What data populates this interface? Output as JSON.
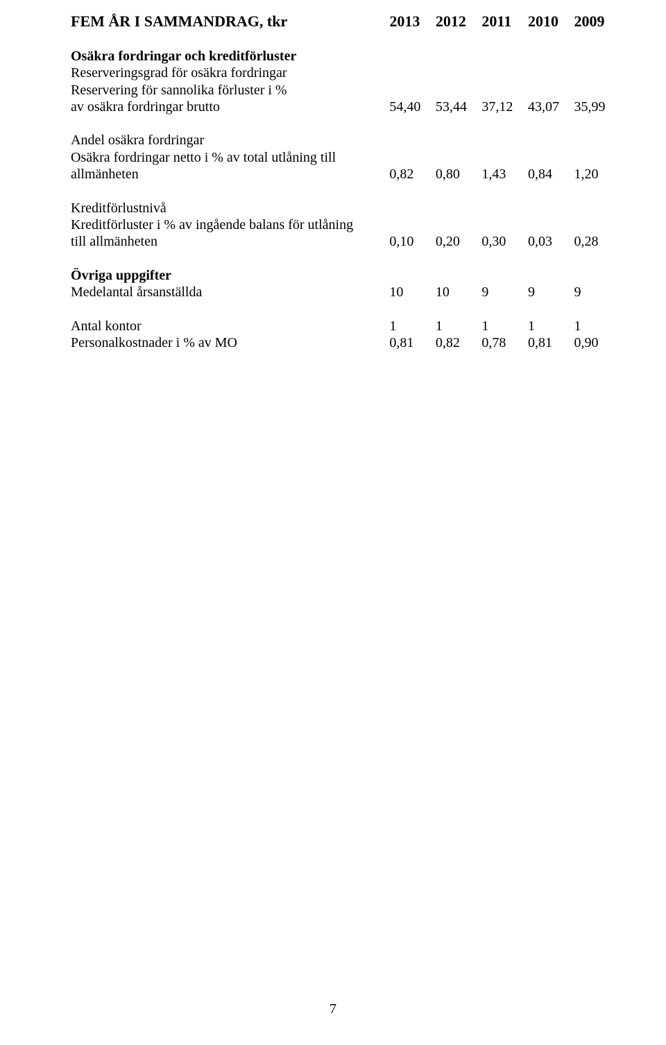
{
  "header": {
    "title": "FEM ÅR I SAMMANDRAG, tkr",
    "years": [
      "2013",
      "2012",
      "2011",
      "2010",
      "2009"
    ]
  },
  "sections": {
    "osakra": {
      "heading": "Osäkra fordringar och kreditförluster",
      "r1_l1": "Reserveringsgrad för osäkra fordringar",
      "r1_l2": " Reservering för sannolika förluster i %",
      "r1_l3": " av osäkra fordringar brutto",
      "r1_vals": [
        "54,40",
        "53,44",
        "37,12",
        "43,07",
        "35,99"
      ],
      "r2_l1": "Andel osäkra fordringar",
      "r2_l2": " Osäkra fordringar netto i % av total utlåning till",
      "r2_l3": " allmänheten",
      "r2_vals": [
        "0,82",
        "0,80",
        "1,43",
        "0,84",
        "1,20"
      ],
      "r3_l1": "Kreditförlustnivå",
      "r3_l2": " Kreditförluster i % av ingående balans för utlåning",
      "r3_l3": " till allmänheten",
      "r3_vals": [
        "0,10",
        "0,20",
        "0,30",
        "0,03",
        "0,28"
      ]
    },
    "ovriga": {
      "heading": "Övriga uppgifter",
      "r1_label": "Medelantal årsanställda",
      "r1_vals": [
        "10",
        "10",
        "9",
        "9",
        "9"
      ],
      "r2_label": "Antal kontor",
      "r2_vals": [
        "1",
        "1",
        "1",
        "1",
        "1"
      ],
      "r3_label": "Personalkostnader i % av MO",
      "r3_vals": [
        "0,81",
        "0,82",
        "0,78",
        "0,81",
        "0,90"
      ]
    }
  },
  "page_number": "7"
}
